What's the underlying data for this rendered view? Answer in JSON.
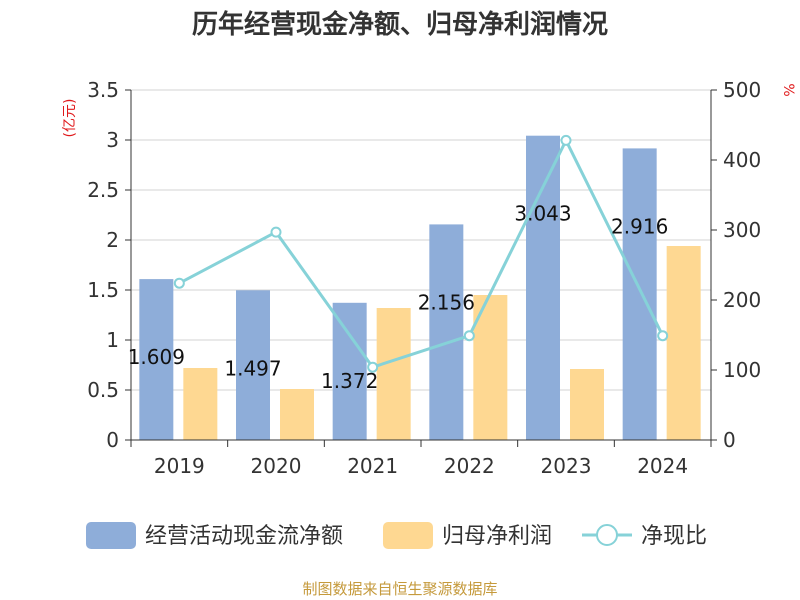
{
  "chart_data": {
    "type": "bar",
    "title": "历年经营现金净额、归母净利润情况",
    "categories": [
      "2019",
      "2020",
      "2021",
      "2022",
      "2023",
      "2024"
    ],
    "series": [
      {
        "name": "经营活动现金流净额",
        "type": "bar",
        "axis": "left",
        "color": "#8eadd9",
        "values": [
          1.609,
          1.497,
          1.372,
          2.156,
          3.043,
          2.916
        ]
      },
      {
        "name": "归母净利润",
        "type": "bar",
        "axis": "left",
        "color": "#fed892",
        "values": [
          0.72,
          0.51,
          1.32,
          1.45,
          0.71,
          1.94
        ]
      },
      {
        "name": "净现比",
        "type": "line",
        "axis": "right",
        "color": "#86d2d8",
        "values": [
          224,
          297,
          104,
          149,
          428,
          149
        ]
      }
    ],
    "data_labels": [
      "1.609",
      "1.497",
      "1.372",
      "2.156",
      "3.043",
      "2.916"
    ],
    "left_axis": {
      "unit": "(亿元)",
      "range": [
        0,
        3.5
      ],
      "ticks": [
        {
          "v": 0,
          "t": "0"
        },
        {
          "v": 0.5,
          "t": "0.5"
        },
        {
          "v": 1,
          "t": "1"
        },
        {
          "v": 1.5,
          "t": "1.5"
        },
        {
          "v": 2,
          "t": "2"
        },
        {
          "v": 2.5,
          "t": "2.5"
        },
        {
          "v": 3,
          "t": "3"
        },
        {
          "v": 3.5,
          "t": "3.5"
        }
      ]
    },
    "right_axis": {
      "unit": "%",
      "range": [
        0,
        500
      ],
      "ticks": [
        {
          "v": 0,
          "t": "0"
        },
        {
          "v": 100,
          "t": "100"
        },
        {
          "v": 200,
          "t": "200"
        },
        {
          "v": 300,
          "t": "300"
        },
        {
          "v": 400,
          "t": "400"
        },
        {
          "v": 500,
          "t": "500"
        }
      ]
    },
    "grid": true,
    "legend_position": "bottom"
  },
  "source": "制图数据来自恒生聚源数据库"
}
